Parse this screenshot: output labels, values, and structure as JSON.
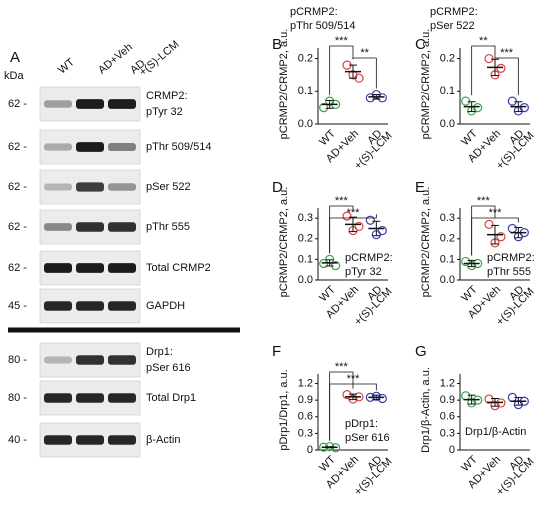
{
  "blot": {
    "letter": "A",
    "kda": "kDa",
    "columns": [
      [
        "WT"
      ],
      [
        "AD+Veh"
      ],
      [
        "AD",
        "+(S)-LCM"
      ]
    ],
    "rows": [
      {
        "kda": "62 -",
        "label": [
          "CRMP2:",
          "pTyr 32"
        ]
      },
      {
        "kda": "62 -",
        "label": [
          "pThr 509/514"
        ]
      },
      {
        "kda": "62 -",
        "label": [
          "pSer 522"
        ]
      },
      {
        "kda": "62 -",
        "label": [
          "pThr 555"
        ]
      },
      {
        "kda": "62 -",
        "label": [
          "Total CRMP2"
        ]
      },
      {
        "kda": "45 -",
        "label": [
          "GAPDH"
        ]
      },
      {
        "kda": "80 -",
        "label": [
          "Drp1:",
          "pSer 616"
        ]
      },
      {
        "kda": "80 -",
        "label": [
          "Total Drp1"
        ]
      },
      {
        "kda": "40 -",
        "label": [
          "β-Actin"
        ]
      }
    ]
  },
  "chart_data": [
    {
      "type": "dotplot",
      "letter": "B",
      "title": [
        "pCRMP2:",
        "pThr 509/514"
      ],
      "y_label": "pCRMP2/CRMP2, a.u.",
      "categories": [
        [
          "WT"
        ],
        [
          "AD+Veh"
        ],
        [
          "AD",
          "+(S)-LCM"
        ]
      ],
      "ylim": [
        0,
        0.22
      ],
      "yticks": [
        {
          "value": 0,
          "label": "0.0"
        },
        0.1,
        0.2
      ],
      "groups": [
        {
          "color": "#3aa64a",
          "points": [
            0.05,
            0.07,
            0.06
          ],
          "mean": 0.06,
          "sd": 0.012
        },
        {
          "color": "#d9413f",
          "points": [
            0.18,
            0.15,
            0.14
          ],
          "mean": 0.16,
          "sd": 0.02
        },
        {
          "color": "#3a3fa8",
          "points": [
            0.08,
            0.09,
            0.08
          ],
          "mean": 0.083,
          "sd": 0.007
        }
      ],
      "comparisons": [
        {
          "pair": [
            0,
            1
          ],
          "label": "***"
        },
        {
          "pair": [
            1,
            2
          ],
          "label": "**"
        }
      ]
    },
    {
      "type": "dotplot",
      "letter": "C",
      "title": [
        "pCRMP2:",
        "pSer 522"
      ],
      "y_label": "pCRMP2/CRMP2, a.u.",
      "categories": [
        [
          "WT"
        ],
        [
          "AD+Veh"
        ],
        [
          "AD",
          "+(S)-LCM"
        ]
      ],
      "ylim": [
        0,
        0.22
      ],
      "yticks": [
        {
          "value": 0,
          "label": "0.0"
        },
        0.1,
        0.2
      ],
      "groups": [
        {
          "color": "#3aa64a",
          "points": [
            0.07,
            0.04,
            0.05
          ],
          "mean": 0.053,
          "sd": 0.015
        },
        {
          "color": "#d9413f",
          "points": [
            0.2,
            0.15,
            0.17
          ],
          "mean": 0.173,
          "sd": 0.025
        },
        {
          "color": "#3a3fa8",
          "points": [
            0.07,
            0.04,
            0.05
          ],
          "mean": 0.053,
          "sd": 0.015
        }
      ],
      "comparisons": [
        {
          "pair": [
            0,
            1
          ],
          "label": "**"
        },
        {
          "pair": [
            1,
            2
          ],
          "label": "***"
        }
      ]
    },
    {
      "type": "dotplot",
      "letter": "D",
      "title": [
        "pCRMP2:",
        "pTyr 32"
      ],
      "y_label": "pCRMP2/CRMP2, a.u.",
      "categories": [
        [
          "WT"
        ],
        [
          "AD+Veh"
        ],
        [
          "AD",
          "+(S)-LCM"
        ]
      ],
      "ylim": [
        0,
        0.33
      ],
      "yticks": [
        {
          "value": 0,
          "label": "0.0"
        },
        0.1,
        0.2,
        0.3
      ],
      "groups": [
        {
          "color": "#3aa64a",
          "points": [
            0.08,
            0.1,
            0.07
          ],
          "mean": 0.083,
          "sd": 0.015
        },
        {
          "color": "#d9413f",
          "points": [
            0.31,
            0.24,
            0.26
          ],
          "mean": 0.27,
          "sd": 0.035
        },
        {
          "color": "#3a3fa8",
          "points": [
            0.29,
            0.22,
            0.24
          ],
          "mean": 0.25,
          "sd": 0.035
        }
      ],
      "comparisons": [
        {
          "pair": [
            0,
            1
          ],
          "label": "***"
        },
        {
          "pair": [
            0,
            2
          ],
          "label": "***"
        }
      ]
    },
    {
      "type": "dotplot",
      "letter": "E",
      "title": [
        "pCRMP2:",
        "pThr 555"
      ],
      "y_label": "pCRMP2/CRMP2, a.u.",
      "categories": [
        [
          "WT"
        ],
        [
          "AD+Veh"
        ],
        [
          "AD",
          "+(S)-LCM"
        ]
      ],
      "ylim": [
        0,
        0.33
      ],
      "yticks": [
        {
          "value": 0,
          "label": "0.0"
        },
        0.1,
        0.2,
        0.3
      ],
      "groups": [
        {
          "color": "#3aa64a",
          "points": [
            0.09,
            0.07,
            0.08
          ],
          "mean": 0.08,
          "sd": 0.015
        },
        {
          "color": "#d9413f",
          "points": [
            0.27,
            0.18,
            0.21
          ],
          "mean": 0.22,
          "sd": 0.045
        },
        {
          "color": "#3a3fa8",
          "points": [
            0.25,
            0.21,
            0.23
          ],
          "mean": 0.23,
          "sd": 0.025
        }
      ],
      "comparisons": [
        {
          "pair": [
            0,
            1
          ],
          "label": "***"
        },
        {
          "pair": [
            0,
            2
          ],
          "label": "***"
        }
      ]
    },
    {
      "type": "dotplot",
      "letter": "F",
      "title": [
        "pDrp1:",
        "pSer 616"
      ],
      "y_label": "pDrp1/Drp1, a.u.",
      "categories": [
        [
          "WT"
        ],
        [
          "AD+Veh"
        ],
        [
          "AD",
          "+(S)-LCM"
        ]
      ],
      "ylim": [
        0,
        1.3
      ],
      "yticks": [
        0,
        0.3,
        0.6,
        0.9,
        1.2
      ],
      "groups": [
        {
          "color": "#3aa64a",
          "points": [
            0.05,
            0.06,
            0.04
          ],
          "mean": 0.05,
          "sd": 0.01
        },
        {
          "color": "#d9413f",
          "points": [
            1.0,
            0.92,
            0.96
          ],
          "mean": 0.96,
          "sd": 0.05
        },
        {
          "color": "#3a3fa8",
          "points": [
            0.95,
            0.97,
            0.93
          ],
          "mean": 0.95,
          "sd": 0.04
        }
      ],
      "comparisons": [
        {
          "pair": [
            0,
            1
          ],
          "label": "***"
        },
        {
          "pair": [
            0,
            2
          ],
          "label": "***"
        }
      ]
    },
    {
      "type": "dotplot",
      "letter": "G",
      "title": [
        "Drp1/β-Actin"
      ],
      "y_label": "Drp1/β-Actin, a.u.",
      "categories": [
        [
          "WT"
        ],
        [
          "AD+Veh"
        ],
        [
          "AD",
          "+(S)-LCM"
        ]
      ],
      "ylim": [
        0,
        1.3
      ],
      "yticks": [
        0,
        0.3,
        0.6,
        0.9,
        1.2
      ],
      "groups": [
        {
          "color": "#3aa64a",
          "points": [
            0.98,
            0.85,
            0.9
          ],
          "mean": 0.91,
          "sd": 0.08
        },
        {
          "color": "#d9413f",
          "points": [
            0.92,
            0.8,
            0.85
          ],
          "mean": 0.86,
          "sd": 0.07
        },
        {
          "color": "#3a3fa8",
          "points": [
            0.95,
            0.82,
            0.88
          ],
          "mean": 0.88,
          "sd": 0.07
        }
      ],
      "comparisons": []
    }
  ]
}
